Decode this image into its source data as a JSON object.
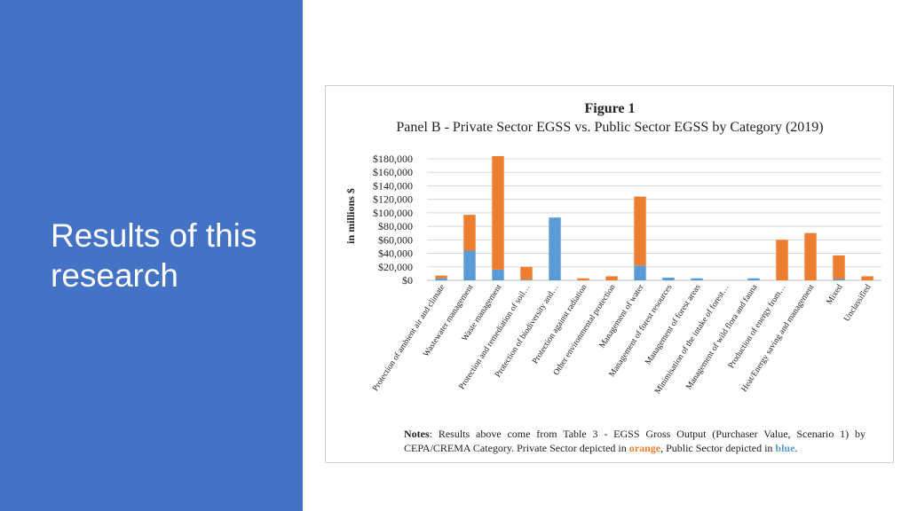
{
  "slide": {
    "title": "Results of this research",
    "panel_color": "#4472c4"
  },
  "figure": {
    "heading": "Figure 1",
    "notes": {
      "label": "Notes",
      "text_before": ": Results above come from Table 3 - EGSS Gross Output (Purchaser Value, Scenario 1) by CEPA/CREMA Category. Private Sector depicted in ",
      "orange_word": "orange",
      "text_middle": ", Public Sector depicted in ",
      "blue_word": "blue",
      "text_after": "."
    }
  },
  "chart_data": {
    "type": "bar",
    "stacked": true,
    "title": "Panel B - Private Sector EGSS vs. Public Sector EGSS by Category (2019)",
    "ylabel": "in millions $",
    "xlabel": "",
    "ylim": [
      0,
      180000
    ],
    "y_ticks": [
      "$0",
      "$20,000",
      "$40,000",
      "$60,000",
      "$80,000",
      "$100,000",
      "$120,000",
      "$140,000",
      "$160,000",
      "$180,000"
    ],
    "grid": true,
    "categories": [
      "Protection of ambient air and climate",
      "Wastewater management",
      "Waste management",
      "Protection and remediation of soil…",
      "Protection of biodiversity and…",
      "Protection against radiation",
      "Other environmental protection",
      "Management of water",
      "Management of forest resources",
      "Management of forest areas",
      "Minimisation of the intake of forest…",
      "Management of wild flora and fauna",
      "Production of energy from…",
      "Heat/Energy saving and management",
      "Mixed",
      "Unclassified"
    ],
    "series": [
      {
        "color": "#5b9bd5",
        "values": [
          3000,
          44000,
          16000,
          1000,
          93000,
          0,
          0,
          22000,
          4000,
          3000,
          0,
          3000,
          0,
          0,
          2000,
          0
        ]
      },
      {
        "color": "#ed7d31",
        "values": [
          4000,
          53000,
          168000,
          19000,
          0,
          3000,
          6000,
          102000,
          0,
          0,
          0,
          0,
          60000,
          70000,
          35000,
          6000
        ]
      }
    ]
  }
}
